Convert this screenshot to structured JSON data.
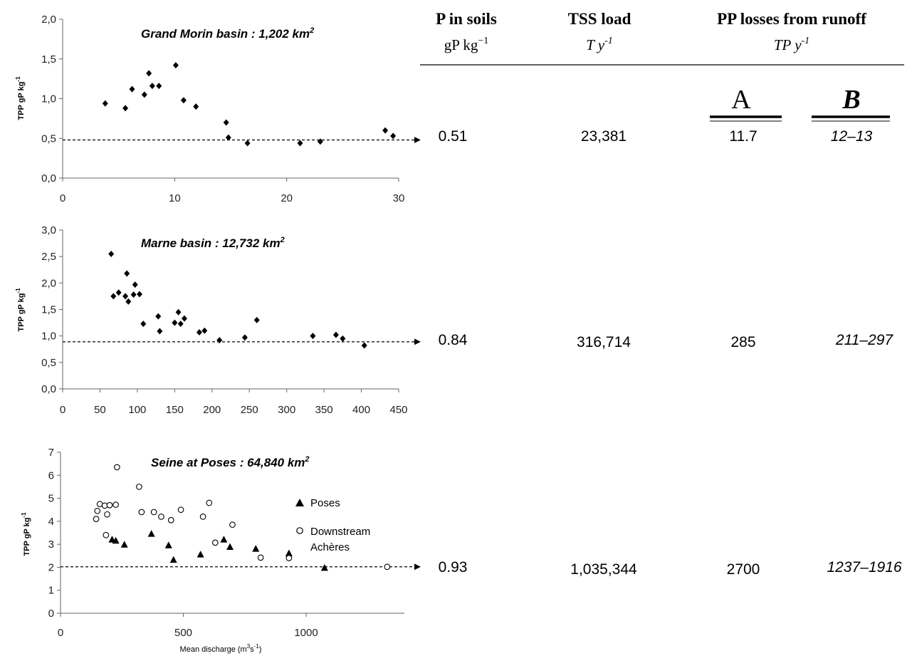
{
  "chart_data": [
    {
      "type": "scatter",
      "title": "Grand Morin basin : 1,202 km",
      "title_sup": "2",
      "ylabel": "TPP gP kg",
      "ylabel_sup": "-1",
      "xlim": [
        0,
        30
      ],
      "ylim": [
        0,
        2
      ],
      "x_ticks": [
        "0",
        "10",
        "20",
        "30"
      ],
      "y_ticks": [
        "0,0",
        "0,5",
        "1,0",
        "1,5",
        "2,0"
      ],
      "reference_line": 0.48,
      "series": [
        {
          "marker": "diamond",
          "points": [
            [
              3.8,
              0.94
            ],
            [
              5.6,
              0.88
            ],
            [
              6.2,
              1.12
            ],
            [
              7.3,
              1.05
            ],
            [
              7.7,
              1.32
            ],
            [
              8.0,
              1.16
            ],
            [
              8.6,
              1.16
            ],
            [
              10.1,
              1.42
            ],
            [
              10.8,
              0.98
            ],
            [
              11.9,
              0.9
            ],
            [
              14.6,
              0.7
            ],
            [
              14.8,
              0.51
            ],
            [
              16.5,
              0.44
            ],
            [
              21.2,
              0.44
            ],
            [
              23.0,
              0.46
            ],
            [
              28.8,
              0.6
            ],
            [
              29.5,
              0.53
            ]
          ]
        }
      ]
    },
    {
      "type": "scatter",
      "title": "Marne basin : 12,732 km",
      "title_sup": "2",
      "ylabel": "TPP gP kg",
      "ylabel_sup": "-1",
      "xlim": [
        0,
        450
      ],
      "ylim": [
        0,
        3
      ],
      "x_ticks": [
        "0",
        "50",
        "100",
        "150",
        "200",
        "250",
        "300",
        "350",
        "400",
        "450"
      ],
      "y_ticks": [
        "0,0",
        "0,5",
        "1,0",
        "1,5",
        "2,0",
        "2,5",
        "3,0"
      ],
      "reference_line": 0.89,
      "series": [
        {
          "marker": "diamond",
          "points": [
            [
              65,
              2.55
            ],
            [
              68,
              1.75
            ],
            [
              75,
              1.82
            ],
            [
              84,
              1.75
            ],
            [
              86,
              2.18
            ],
            [
              88,
              1.65
            ],
            [
              95,
              1.78
            ],
            [
              97,
              1.97
            ],
            [
              103,
              1.79
            ],
            [
              108,
              1.23
            ],
            [
              128,
              1.37
            ],
            [
              130,
              1.09
            ],
            [
              150,
              1.25
            ],
            [
              155,
              1.45
            ],
            [
              158,
              1.23
            ],
            [
              163,
              1.33
            ],
            [
              183,
              1.07
            ],
            [
              190,
              1.1
            ],
            [
              210,
              0.92
            ],
            [
              244,
              0.97
            ],
            [
              260,
              1.3
            ],
            [
              335,
              1.0
            ],
            [
              366,
              1.02
            ],
            [
              375,
              0.95
            ],
            [
              404,
              0.82
            ]
          ]
        }
      ]
    },
    {
      "type": "scatter",
      "title": "Seine at Poses : 64,840 km",
      "title_sup": "2",
      "ylabel": "TPP gP kg",
      "ylabel_sup": "-1",
      "xlabel": "Mean discharge (m",
      "xlabel_sup1": "3",
      "xlabel_mid": "s",
      "xlabel_sup2": "-1",
      "xlabel_end": ")",
      "xlim": [
        0,
        1400
      ],
      "ylim": [
        0,
        7
      ],
      "x_ticks": [
        "0",
        "500",
        "1000"
      ],
      "x_tick_values": [
        0,
        500,
        1000
      ],
      "y_ticks": [
        "0",
        "1",
        "2",
        "3",
        "4",
        "5",
        "6",
        "7"
      ],
      "reference_line": 2.02,
      "legend": {
        "poses": "Poses",
        "downstream_line1": "Downstream",
        "downstream_line2": "Achères"
      },
      "series": [
        {
          "name": "Poses",
          "marker": "triangle",
          "points": [
            [
              210,
              3.2
            ],
            [
              225,
              3.15
            ],
            [
              260,
              2.98
            ],
            [
              370,
              3.45
            ],
            [
              440,
              2.95
            ],
            [
              460,
              2.32
            ],
            [
              570,
              2.55
            ],
            [
              665,
              3.2
            ],
            [
              690,
              2.88
            ],
            [
              795,
              2.8
            ],
            [
              930,
              2.6
            ],
            [
              1075,
              1.97
            ]
          ]
        },
        {
          "name": "Downstream Achères",
          "marker": "circle",
          "points": [
            [
              145,
              4.1
            ],
            [
              150,
              4.45
            ],
            [
              160,
              4.75
            ],
            [
              180,
              4.68
            ],
            [
              185,
              3.4
            ],
            [
              190,
              4.3
            ],
            [
              200,
              4.7
            ],
            [
              225,
              4.72
            ],
            [
              230,
              6.35
            ],
            [
              320,
              5.5
            ],
            [
              330,
              4.4
            ],
            [
              380,
              4.4
            ],
            [
              410,
              4.2
            ],
            [
              450,
              4.05
            ],
            [
              490,
              4.5
            ],
            [
              580,
              4.2
            ],
            [
              605,
              4.8
            ],
            [
              630,
              3.07
            ],
            [
              700,
              3.85
            ],
            [
              815,
              2.42
            ],
            [
              930,
              2.4
            ],
            [
              1330,
              2.02
            ]
          ]
        }
      ]
    }
  ],
  "table": {
    "headers": [
      {
        "title": "P in soils",
        "unit_main": "gP kg",
        "unit_sup": "−1"
      },
      {
        "title": "TSS load",
        "unit_main": "T y",
        "unit_sup": "-1"
      },
      {
        "title": "PP losses from runoff",
        "unit_main": "TP y",
        "unit_sup": "-1"
      }
    ],
    "col_a": "A",
    "col_b": "B",
    "rows": [
      {
        "p_soils": "0.51",
        "tss": "23,381",
        "a": "11.7",
        "b": "12–13"
      },
      {
        "p_soils": "0.84",
        "tss": "316,714",
        "a": "285",
        "b": "211–297"
      },
      {
        "p_soils": "0.93",
        "tss": "1,035,344",
        "a": "2700",
        "b": "1237–1916"
      }
    ]
  }
}
